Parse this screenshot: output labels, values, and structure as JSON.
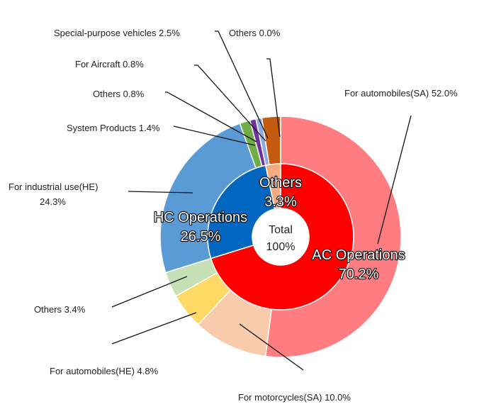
{
  "chart_data": {
    "type": "pie",
    "subtype": "nested-donut",
    "center_label": {
      "line1": "Total",
      "line2": "100%"
    },
    "inner_ring": [
      {
        "label": "AC Operations",
        "value": 70.2,
        "value_label": "70.2%",
        "color": "#ff0000"
      },
      {
        "label": "HC Operations",
        "value": 26.5,
        "value_label": "26.5%",
        "color": "#0066bf"
      },
      {
        "label": "Others",
        "value": 3.3,
        "value_label": "3.3%",
        "color": "#f4ab80"
      }
    ],
    "outer_ring": [
      {
        "label": "For automobiles(SA) 52.0%",
        "value": 52.0,
        "color": "#ff7c80"
      },
      {
        "label": "For motorcycles(SA) 10.0%",
        "value": 10.0,
        "color": "#f8cbad"
      },
      {
        "label": "For automobiles(HE) 4.8%",
        "value": 4.8,
        "color": "#ffd966"
      },
      {
        "label": "Others 3.4%",
        "value": 3.4,
        "color": "#c5e0b4"
      },
      {
        "label": "For industrial use(HE) 24.3%",
        "value": 24.3,
        "color": "#5b9bd5"
      },
      {
        "label": "System Products 1.4%",
        "value": 1.4,
        "color": "#70ad47"
      },
      {
        "label": "Others 0.8%",
        "value": 0.8,
        "color": "#7030a0"
      },
      {
        "label": "For Aircraft 0.8%",
        "value": 0.8,
        "color": "#8faadc"
      },
      {
        "label": "Special-purpose vehicles 2.5%",
        "value": 2.5,
        "color": "#c55a11"
      },
      {
        "label": "Others 0.0%",
        "value": 0.0,
        "color": "#f4b183"
      }
    ],
    "legend": "none"
  }
}
